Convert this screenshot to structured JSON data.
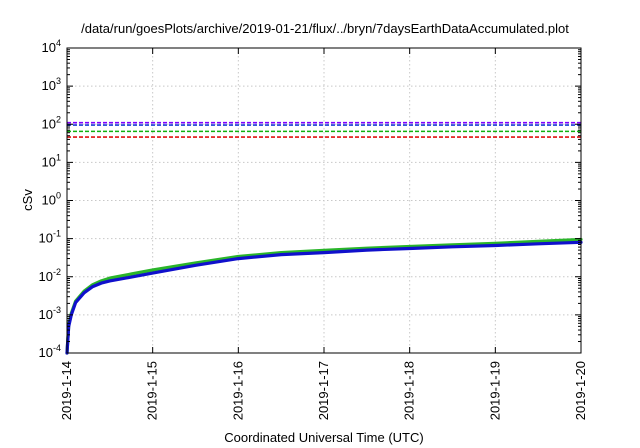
{
  "chart_data": {
    "type": "line",
    "title": "/data/run/goesPlots/archive/2019-01-21/flux/../bryn/7daysEarthDataAccumulated.plot",
    "xlabel": "Coordinated Universal Time (UTC)",
    "ylabel": "cSv",
    "yscale": "log",
    "ylim": [
      0.0001,
      10000
    ],
    "xlim": [
      0,
      6
    ],
    "grid": true,
    "y_ticks": [
      {
        "value": 0.0001,
        "mantissa": "10",
        "exp": "-4"
      },
      {
        "value": 0.001,
        "mantissa": "10",
        "exp": "-3"
      },
      {
        "value": 0.01,
        "mantissa": "10",
        "exp": "-2"
      },
      {
        "value": 0.1,
        "mantissa": "10",
        "exp": "-1"
      },
      {
        "value": 1,
        "mantissa": "10",
        "exp": "0"
      },
      {
        "value": 10,
        "mantissa": "10",
        "exp": "1"
      },
      {
        "value": 100,
        "mantissa": "10",
        "exp": "2"
      },
      {
        "value": 1000,
        "mantissa": "10",
        "exp": "3"
      },
      {
        "value": 10000,
        "mantissa": "10",
        "exp": "4"
      }
    ],
    "x_ticks": [
      {
        "value": 0,
        "label": "2019-1-14"
      },
      {
        "value": 1,
        "label": "2019-1-15"
      },
      {
        "value": 2,
        "label": "2019-1-16"
      },
      {
        "value": 3,
        "label": "2019-1-17"
      },
      {
        "value": 4,
        "label": "2019-1-18"
      },
      {
        "value": 5,
        "label": "2019-1-19"
      },
      {
        "value": 6,
        "label": "2019-1-20"
      }
    ],
    "thresholds": [
      {
        "value": 110,
        "color": "#7f00ff"
      },
      {
        "value": 95,
        "color": "#1a3dd6"
      },
      {
        "value": 65,
        "color": "#10b010"
      },
      {
        "value": 46,
        "color": "#e01010"
      }
    ],
    "series": [
      {
        "color": "#2ab52a",
        "x": [
          0,
          0.02,
          0.05,
          0.1,
          0.2,
          0.3,
          0.4,
          0.5,
          0.75,
          1.0,
          1.5,
          2.0,
          2.5,
          3.0,
          3.5,
          4.0,
          4.5,
          5.0,
          5.5,
          6.0
        ],
        "y": [
          0.0001,
          0.00055,
          0.0011,
          0.0023,
          0.0042,
          0.0062,
          0.0078,
          0.0092,
          0.0118,
          0.015,
          0.023,
          0.034,
          0.043,
          0.049,
          0.056,
          0.062,
          0.069,
          0.075,
          0.085,
          0.095
        ]
      },
      {
        "color": "#1010cc",
        "x": [
          0,
          0.02,
          0.05,
          0.1,
          0.2,
          0.3,
          0.4,
          0.5,
          0.75,
          1.0,
          1.5,
          2.0,
          2.5,
          3.0,
          3.5,
          4.0,
          4.5,
          5.0,
          5.5,
          6.0
        ],
        "y": [
          0.0001,
          0.0005,
          0.001,
          0.0021,
          0.0038,
          0.0055,
          0.0068,
          0.0078,
          0.0098,
          0.0125,
          0.02,
          0.03,
          0.038,
          0.043,
          0.05,
          0.055,
          0.061,
          0.066,
          0.073,
          0.08
        ]
      }
    ]
  }
}
